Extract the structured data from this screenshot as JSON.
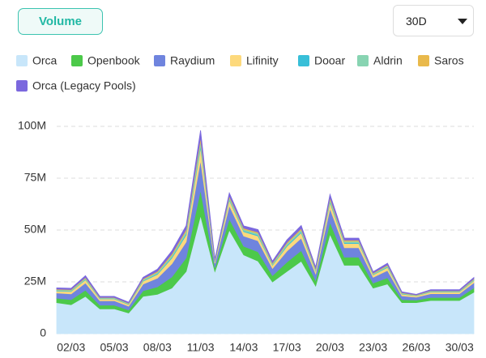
{
  "ui": {
    "tab": "Volume",
    "range": "30D"
  },
  "chart_data": {
    "type": "stacked-area",
    "categories": [
      null,
      "02/03",
      null,
      null,
      "05/03",
      null,
      null,
      "08/03",
      null,
      null,
      "11/03",
      null,
      null,
      "14/03",
      null,
      null,
      "17/03",
      null,
      null,
      "20/03",
      null,
      null,
      "23/03",
      null,
      null,
      "26/03",
      null,
      null,
      "30/03",
      null
    ],
    "ylim": [
      0,
      100
    ],
    "yticks": [
      0,
      {
        "value": 25,
        "label": "25M"
      },
      {
        "value": 50,
        "label": "50M"
      },
      {
        "value": 75,
        "label": "75M"
      },
      {
        "value": 100,
        "label": "100M"
      }
    ],
    "grid": true,
    "series": [
      {
        "name": "Orca",
        "color": "#c8e6fa",
        "values": [
          15,
          14,
          18,
          12,
          12,
          10,
          18,
          19,
          22,
          30,
          57,
          30,
          50,
          38,
          35,
          25,
          30,
          35,
          23,
          48,
          33,
          33,
          22,
          24,
          15,
          15,
          16,
          16,
          16,
          20
        ]
      },
      {
        "name": "Openbook",
        "color": "#4cc94a",
        "values": [
          2.1,
          2.4,
          3,
          1.8,
          1.8,
          1.5,
          2.7,
          3.6,
          5.4,
          6.6,
          12.3,
          1.8,
          5.4,
          4.2,
          4.5,
          3,
          4.5,
          5.1,
          2.7,
          5.7,
          3.9,
          3.9,
          2.4,
          3,
          1.5,
          1.2,
          1.5,
          1.5,
          1.5,
          2.1
        ]
      },
      {
        "name": "Raydium",
        "color": "#6f84de",
        "values": [
          2.5,
          2.8,
          3.5,
          2.1,
          2.1,
          1.8,
          3.2,
          4.2,
          6.3,
          7.7,
          14.4,
          2.1,
          6.3,
          4.9,
          5.3,
          3.5,
          5.3,
          6,
          3.2,
          6.7,
          4.6,
          4.6,
          2.8,
          3.5,
          1.8,
          1.4,
          1.8,
          1.8,
          1.8,
          2.5
        ]
      },
      {
        "name": "Lifinity",
        "color": "#fdd97c",
        "values": [
          1,
          1.2,
          1.5,
          0.9,
          0.9,
          0.8,
          1.4,
          1.8,
          2.7,
          3.3,
          6.2,
          0.9,
          2.7,
          2.1,
          2.3,
          1.5,
          2.3,
          2.6,
          1.4,
          2.9,
          2,
          2,
          1.2,
          1.5,
          0.8,
          0.6,
          0.8,
          0.8,
          0.8,
          1
        ]
      },
      {
        "name": "Dooar",
        "color": "#38bfd8",
        "values": [
          0.2,
          0.2,
          0.3,
          0.2,
          0.2,
          0.2,
          0.3,
          0.4,
          0.5,
          0.7,
          1.2,
          0.2,
          0.5,
          0.4,
          0.5,
          0.3,
          0.5,
          0.5,
          0.3,
          0.6,
          0.4,
          0.4,
          0.2,
          0.3,
          0.2,
          0.1,
          0.2,
          0.2,
          0.2,
          0.2
        ]
      },
      {
        "name": "Aldrin",
        "color": "#88d4b2",
        "values": [
          0.4,
          0.4,
          0.5,
          0.3,
          0.3,
          0.3,
          0.5,
          0.6,
          0.9,
          1.1,
          2.1,
          0.3,
          0.9,
          0.7,
          0.8,
          0.5,
          0.8,
          0.9,
          0.5,
          1,
          0.7,
          0.7,
          0.4,
          0.5,
          0.3,
          0.2,
          0.3,
          0.3,
          0.3,
          0.4
        ]
      },
      {
        "name": "Saros",
        "color": "#e9b94b",
        "values": [
          0.3,
          0.3,
          0.4,
          0.2,
          0.2,
          0.2,
          0.4,
          0.5,
          0.7,
          0.9,
          1.6,
          0.2,
          0.7,
          0.6,
          0.6,
          0.4,
          0.6,
          0.7,
          0.4,
          0.8,
          0.5,
          0.5,
          0.3,
          0.4,
          0.2,
          0.2,
          0.2,
          0.2,
          0.2,
          0.3
        ]
      },
      {
        "name": "Orca (Legacy Pools)",
        "color": "#7b68de",
        "values": [
          0.6,
          0.6,
          0.8,
          0.5,
          0.5,
          0.4,
          0.7,
          1,
          1.4,
          1.8,
          3.3,
          0.5,
          1.4,
          1.1,
          1.2,
          0.8,
          1.2,
          1.4,
          0.7,
          1.5,
          1,
          1,
          0.6,
          0.8,
          0.4,
          0.3,
          0.4,
          0.4,
          0.4,
          0.6
        ]
      }
    ]
  }
}
